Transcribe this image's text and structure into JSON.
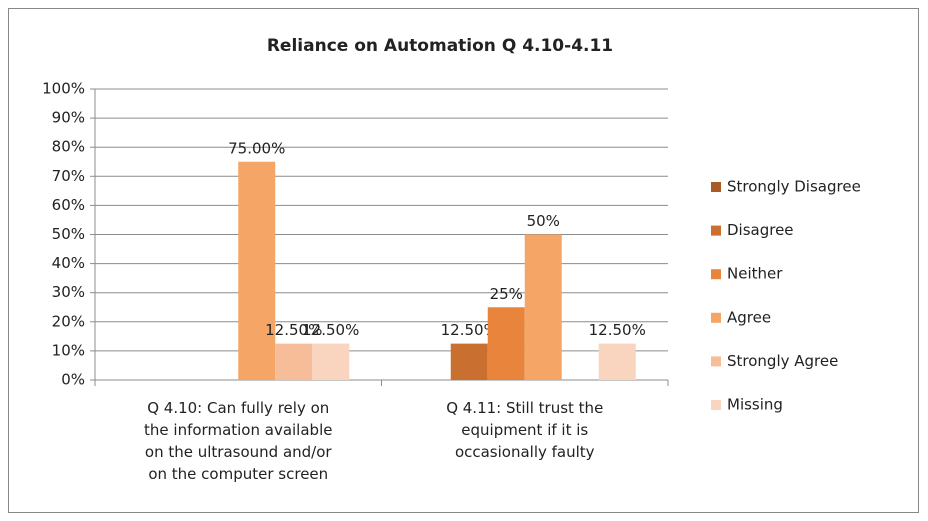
{
  "chart_data": {
    "type": "bar",
    "title": "Reliance on Automation Q 4.10-4.11",
    "categories": [
      "Q 4.10: Can fully rely on the information available on the ultrasound and/or on the computer screen",
      "Q 4.11: Still trust the equipment if it is occasionally faulty"
    ],
    "series": [
      {
        "name": "Strongly Disagree",
        "color": "#a95b26",
        "values": [
          null,
          null
        ],
        "value_labels": [
          null,
          null
        ]
      },
      {
        "name": "Disagree",
        "color": "#c96f2f",
        "values": [
          null,
          12.5
        ],
        "value_labels": [
          null,
          "12.50%"
        ]
      },
      {
        "name": "Neither",
        "color": "#e8843c",
        "values": [
          null,
          25
        ],
        "value_labels": [
          null,
          "25%"
        ]
      },
      {
        "name": "Agree",
        "color": "#f5a566",
        "values": [
          75,
          50
        ],
        "value_labels": [
          "75.00%",
          "50%"
        ]
      },
      {
        "name": "Strongly  Agree",
        "color": "#f7bd99",
        "values": [
          12.5,
          null
        ],
        "value_labels": [
          "12.50%",
          null
        ]
      },
      {
        "name": "Missing",
        "color": "#f9d4be",
        "values": [
          12.5,
          12.5
        ],
        "value_labels": [
          "12.50%",
          "12.50%"
        ]
      }
    ],
    "ylim": [
      0,
      100
    ],
    "yticks": [
      {
        "value": 0,
        "label": "0%"
      },
      {
        "value": 10,
        "label": "10%"
      },
      {
        "value": 20,
        "label": "20%"
      },
      {
        "value": 30,
        "label": "30%"
      },
      {
        "value": 40,
        "label": "40%"
      },
      {
        "value": 50,
        "label": "50%"
      },
      {
        "value": 60,
        "label": "60%"
      },
      {
        "value": 70,
        "label": "70%"
      },
      {
        "value": 80,
        "label": "80%"
      },
      {
        "value": 90,
        "label": "90%"
      },
      {
        "value": 100,
        "label": "100%"
      }
    ],
    "grid": true,
    "legend": "right"
  }
}
